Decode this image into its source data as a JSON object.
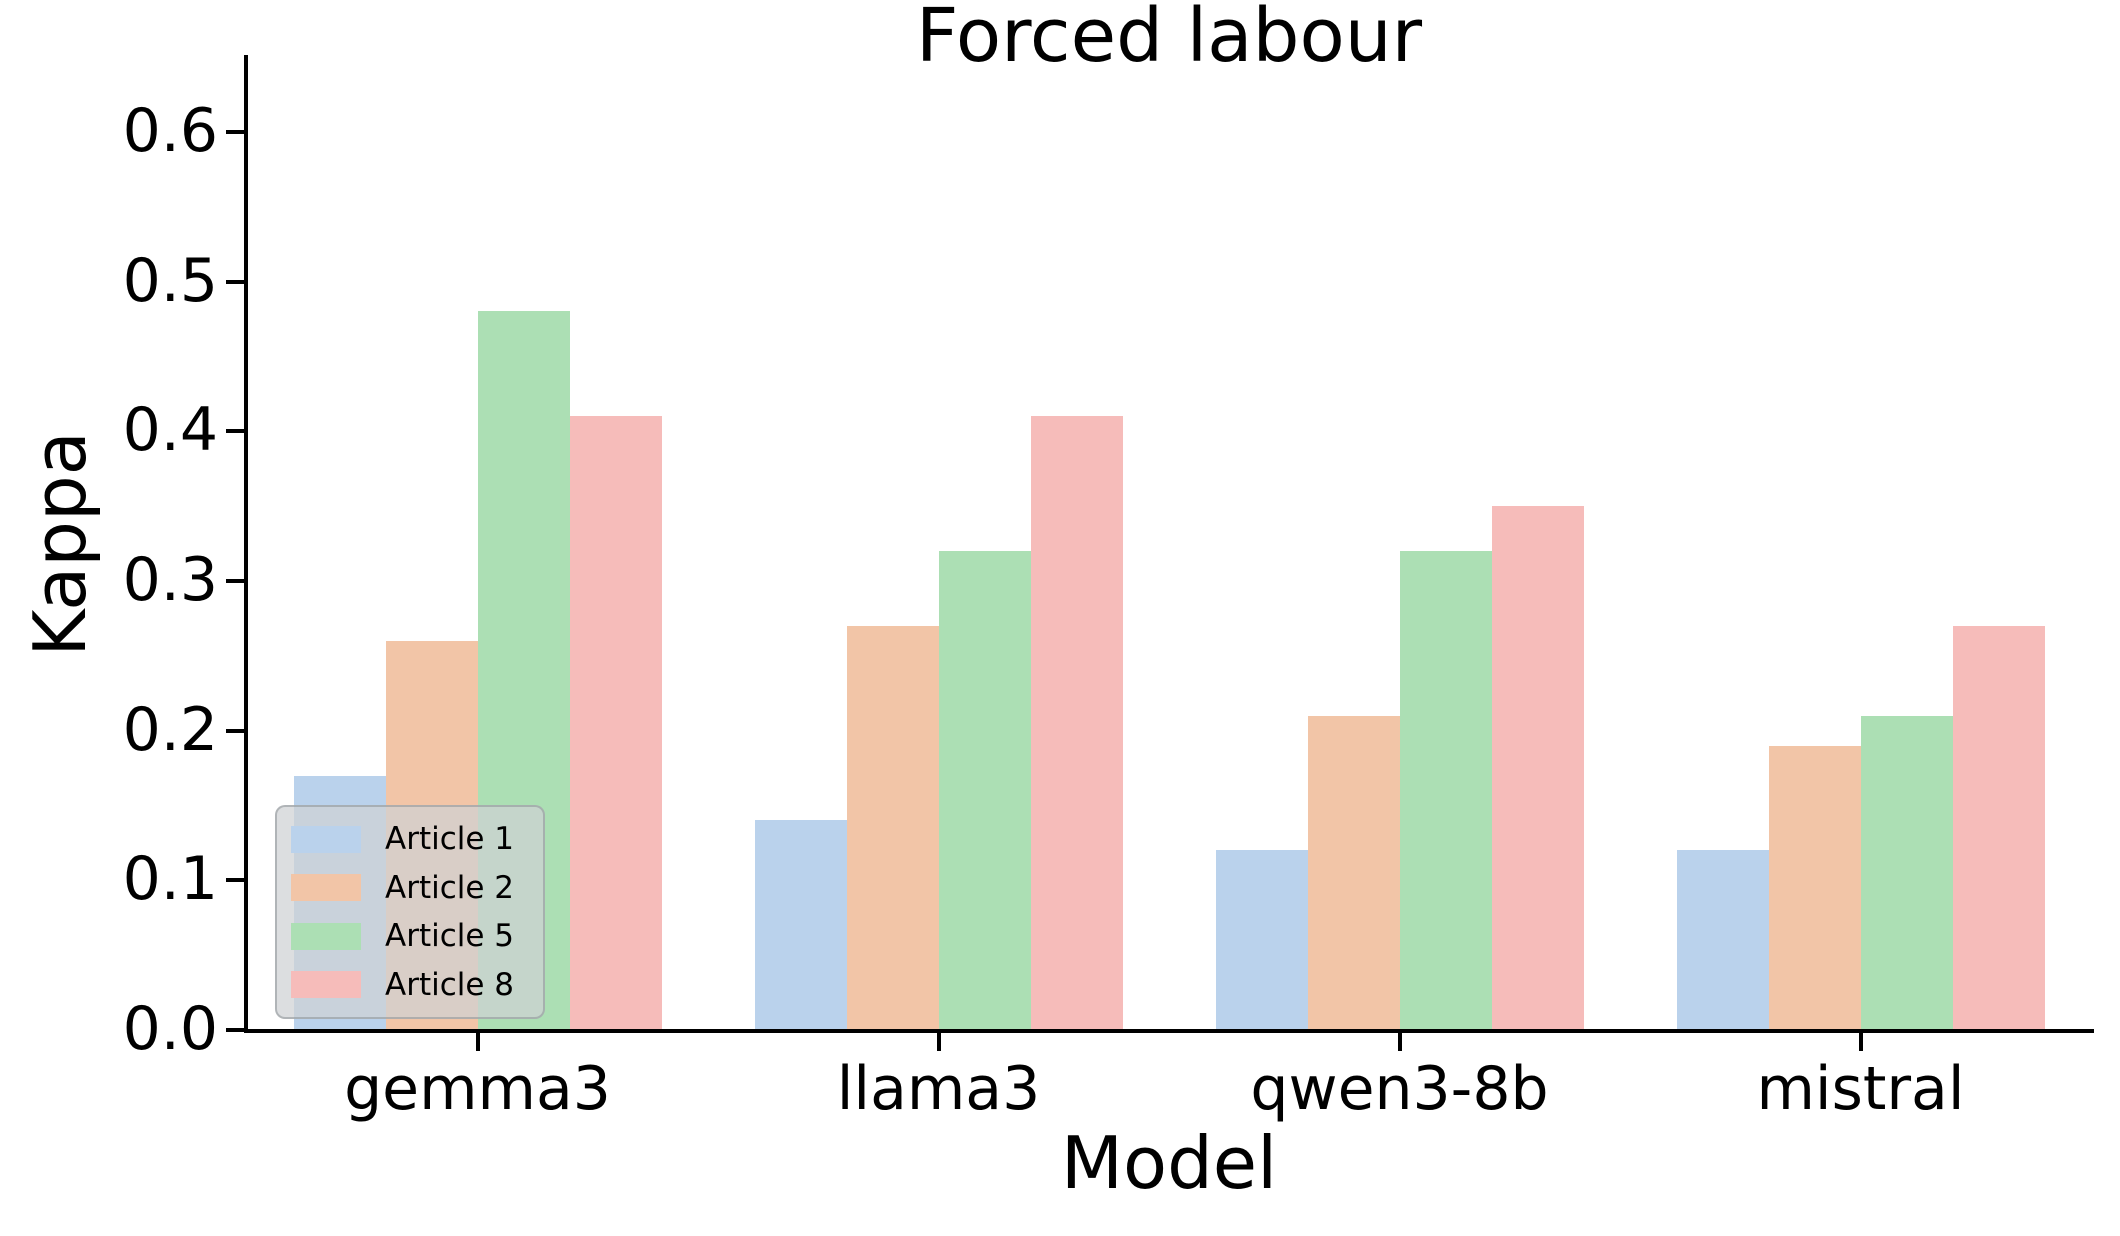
{
  "chart_data": {
    "type": "bar",
    "title": "Forced labour",
    "xlabel": "Model",
    "ylabel": "Kappa",
    "categories": [
      "gemma3",
      "llama3",
      "qwen3-8b",
      "mistral"
    ],
    "series": [
      {
        "name": "Article 1",
        "color": "#bad2ec",
        "values": [
          0.17,
          0.14,
          0.12,
          0.12
        ]
      },
      {
        "name": "Article 2",
        "color": "#f2c5a7",
        "values": [
          0.26,
          0.27,
          0.21,
          0.19
        ]
      },
      {
        "name": "Article 5",
        "color": "#acdfb4",
        "values": [
          0.48,
          0.32,
          0.32,
          0.21
        ]
      },
      {
        "name": "Article 8",
        "color": "#f6bcba",
        "values": [
          0.41,
          0.41,
          0.35,
          0.27
        ]
      }
    ],
    "ylim": [
      0,
      0.65
    ],
    "yticks": [
      0.0,
      0.1,
      0.2,
      0.3,
      0.4,
      0.5,
      0.6
    ],
    "ytick_labels": [
      "0.0",
      "0.1",
      "0.2",
      "0.3",
      "0.4",
      "0.5",
      "0.6"
    ],
    "legend_position": "lower left",
    "grid": false,
    "axis_color": "#000000",
    "background_color": "#ffffff"
  }
}
